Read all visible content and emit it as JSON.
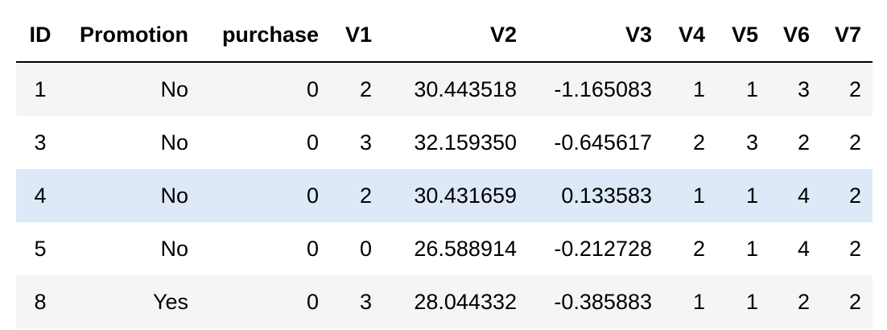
{
  "table": {
    "columns": [
      "ID",
      "Promotion",
      "purchase",
      "V1",
      "V2",
      "V3",
      "V4",
      "V5",
      "V6",
      "V7"
    ],
    "rows": [
      [
        "1",
        "No",
        "0",
        "2",
        "30.443518",
        "-1.165083",
        "1",
        "1",
        "3",
        "2"
      ],
      [
        "3",
        "No",
        "0",
        "3",
        "32.159350",
        "-0.645617",
        "2",
        "3",
        "2",
        "2"
      ],
      [
        "4",
        "No",
        "0",
        "2",
        "30.431659",
        "0.133583",
        "1",
        "1",
        "4",
        "2"
      ],
      [
        "5",
        "No",
        "0",
        "0",
        "26.588914",
        "-0.212728",
        "2",
        "1",
        "4",
        "2"
      ],
      [
        "8",
        "Yes",
        "0",
        "3",
        "28.044332",
        "-0.385883",
        "1",
        "1",
        "2",
        "2"
      ]
    ],
    "highlighted_row": 2
  },
  "colors": {
    "stripe": "#f5f5f5",
    "highlight": "#dde9f7",
    "header_rule": "#000000"
  }
}
